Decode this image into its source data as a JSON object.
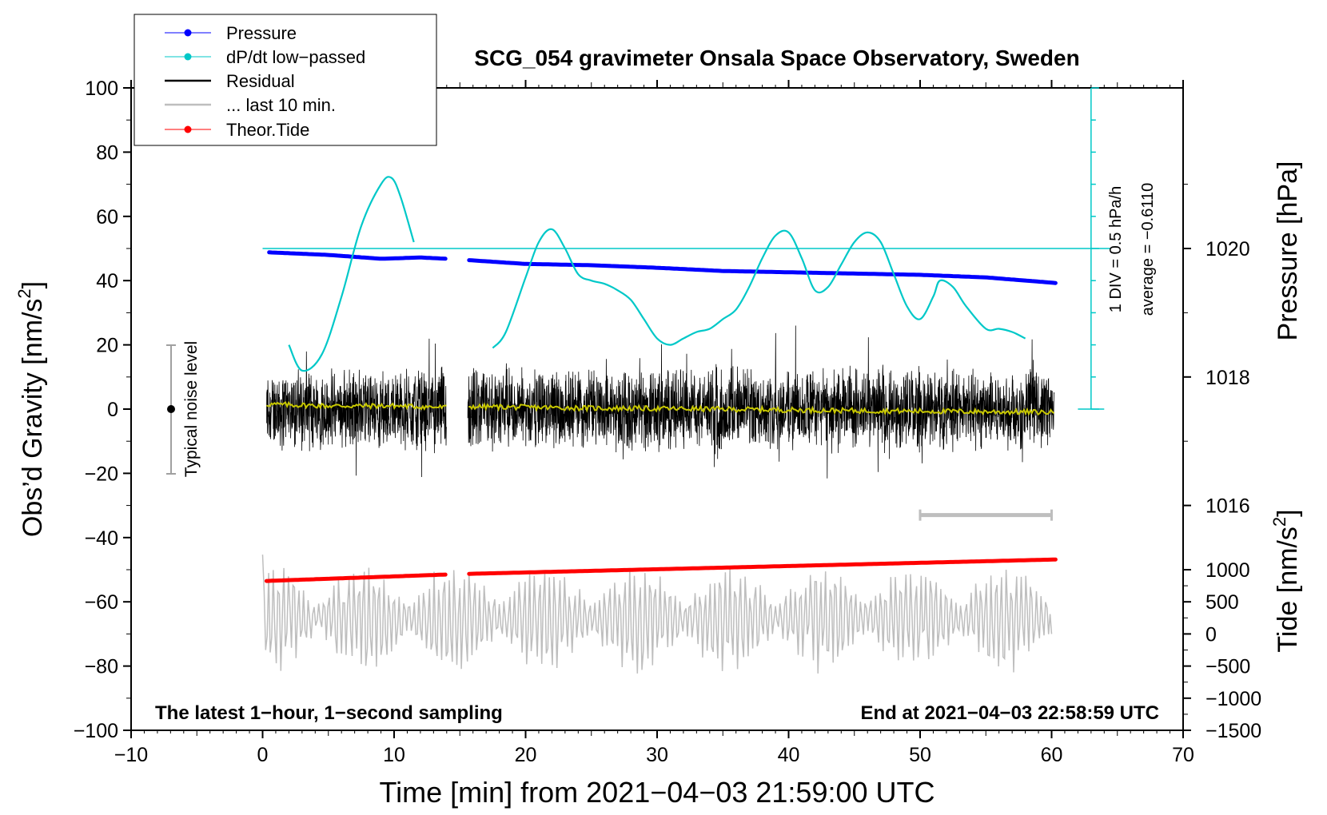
{
  "chart_data": {
    "type": "line",
    "title": "SCG_054 gravimeter Onsala Space Observatory, Sweden",
    "xlabel": "Time [min] from 2021−04−03 21:59:00 UTC",
    "ylabel_main": "Obs’d Gravity [nm/s",
    "ylabel_main_sup": "2",
    "ylabel_main_end": "]",
    "ylabel_pressure": "Pressure [hPa]",
    "ylabel_tide": "Tide [nm/s",
    "ylabel_tide_sup": "2",
    "ylabel_tide_end": "]",
    "xlim": [
      -10,
      70
    ],
    "ylim": [
      -100,
      100
    ],
    "x_ticks": [
      -10,
      0,
      10,
      20,
      30,
      40,
      50,
      60,
      70
    ],
    "x_tick_labels": [
      "−10",
      "0",
      "10",
      "20",
      "30",
      "40",
      "50",
      "60",
      "70"
    ],
    "y_ticks": [
      -100,
      -80,
      -60,
      -40,
      -20,
      0,
      20,
      40,
      60,
      80,
      100
    ],
    "y_tick_labels": [
      "−100",
      "−80",
      "−60",
      "−40",
      "−20",
      "0",
      "20",
      "40",
      "60",
      "80",
      "100"
    ],
    "pressure_axis": {
      "range_hPa": [
        1014.5,
        1021.5
      ],
      "ticks": [
        1016,
        1018,
        1020
      ],
      "tick_labels": [
        "1016",
        "1018",
        "1020"
      ]
    },
    "tide_axis": {
      "range": [
        -1500,
        1000
      ],
      "ticks": [
        -1500,
        -1000,
        -500,
        0,
        500,
        1000
      ],
      "tick_labels": [
        "−1500",
        "−1000",
        "−500",
        "0",
        "500",
        "1000"
      ]
    },
    "legend": {
      "placement": "top-left",
      "entries": [
        {
          "label": "Pressure",
          "color": "#0000ff",
          "marker": true
        },
        {
          "label": "dP/dt low−passed",
          "color": "#00c8c8",
          "marker": true
        },
        {
          "label": "Residual",
          "color": "#000000",
          "marker": false
        },
        {
          "label": "... last 10 min.",
          "color": "#bebebe",
          "marker": false
        },
        {
          "label": "Theor.Tide",
          "color": "#ff0000",
          "marker": true
        }
      ]
    },
    "annotations": {
      "bottom_left": "The latest 1−hour, 1−second sampling",
      "bottom_right": "End at 2021−04−03 22:58:59 UTC",
      "noise_label": "Typical noise level",
      "dpdt_scale": "1 DIV = 0.5 hPa/h",
      "dpdt_average": "average = −0.6110"
    },
    "colors": {
      "pressure": "#0000ff",
      "dpdt": "#00c8c8",
      "residual": "#000000",
      "last10": "#bebebe",
      "tide": "#ff0000",
      "smoothed": "#c8c800"
    },
    "series": [
      {
        "name": "Pressure",
        "unit": "hPa",
        "gaps": [
          [
            14.0,
            15.6
          ]
        ],
        "x": [
          0.5,
          5,
          9,
          12,
          14,
          15.6,
          20,
          25,
          30,
          35,
          40,
          45,
          50,
          55,
          60.5
        ],
        "values": [
          1019.94,
          1019.9,
          1019.84,
          1019.86,
          1019.84,
          1019.82,
          1019.76,
          1019.74,
          1019.7,
          1019.65,
          1019.63,
          1019.61,
          1019.59,
          1019.55,
          1019.46
        ]
      },
      {
        "name": "dP/dt low−passed",
        "unit": "nm/s2-equivalent on left axis",
        "segments": [
          {
            "x": [
              2.0,
              3.0,
              4.5,
              6.0,
              7.5,
              9.0,
              9.8,
              10.5,
              11.5
            ],
            "values": [
              20,
              12,
              17,
              35,
              57,
              70,
              72,
              66,
              52
            ]
          },
          {
            "x": [
              17.5,
              18.5,
              20.0,
              21.0,
              22.0,
              23.0,
              24.0,
              25.0,
              26.0,
              27.0,
              28.0,
              29.0,
              30.0,
              31.0,
              32.0,
              33.0,
              34.0,
              35.0,
              36.0,
              37.0,
              38.0,
              39.0,
              40.0,
              41.0,
              42.0,
              43.0,
              44.0,
              45.0,
              46.0,
              47.0,
              48.0,
              49.0,
              50.0,
              51.0,
              51.5,
              52.5,
              53.5,
              55.0,
              56.0,
              57.0,
              58.0
            ],
            "values": [
              19,
              24,
              41,
              52,
              56,
              50,
              42,
              40,
              39,
              37,
              34,
              28,
              22,
              20,
              22,
              24,
              25,
              28,
              31,
              38,
              47,
              54,
              55,
              47,
              37,
              38,
              45,
              52,
              55,
              52,
              42,
              32,
              28,
              35,
              40,
              38,
              32,
              25,
              25,
              24,
              22
            ]
          }
        ]
      },
      {
        "name": "Residual",
        "unit": "nm/s2",
        "gaps": [
          [
            14.0,
            15.6
          ]
        ],
        "x": [
          0.3,
          14.0,
          15.6,
          60.2
        ],
        "values": [
          0,
          0,
          0,
          0
        ],
        "envelope_approx": [
          -25,
          25
        ]
      },
      {
        "name": "Residual smoothed",
        "unit": "nm/s2",
        "x": [
          0.3,
          5,
          10,
          14,
          15.6,
          25,
          35,
          45,
          55,
          60.2
        ],
        "values": [
          1.5,
          1,
          1,
          0.5,
          0.8,
          0.3,
          0,
          -0.5,
          -0.8,
          -1
        ]
      },
      {
        "name": "... last 10 min.",
        "unit": "nm/s2",
        "offset_on_left_axis": -65,
        "x": [
          0.0,
          60.0
        ],
        "values": [
          -57,
          -70
        ],
        "envelope_approx": [
          -83,
          -37
        ]
      },
      {
        "name": "Theor.Tide",
        "unit": "nm/s2",
        "gaps": [
          [
            14.0,
            15.6
          ]
        ],
        "x": [
          0.3,
          14.0,
          15.6,
          60.5
        ],
        "values": [
          -53.5,
          -51.5,
          -51.3,
          -46.8
        ]
      }
    ],
    "last10_bar": {
      "x": [
        50,
        60
      ],
      "y": -33
    }
  }
}
